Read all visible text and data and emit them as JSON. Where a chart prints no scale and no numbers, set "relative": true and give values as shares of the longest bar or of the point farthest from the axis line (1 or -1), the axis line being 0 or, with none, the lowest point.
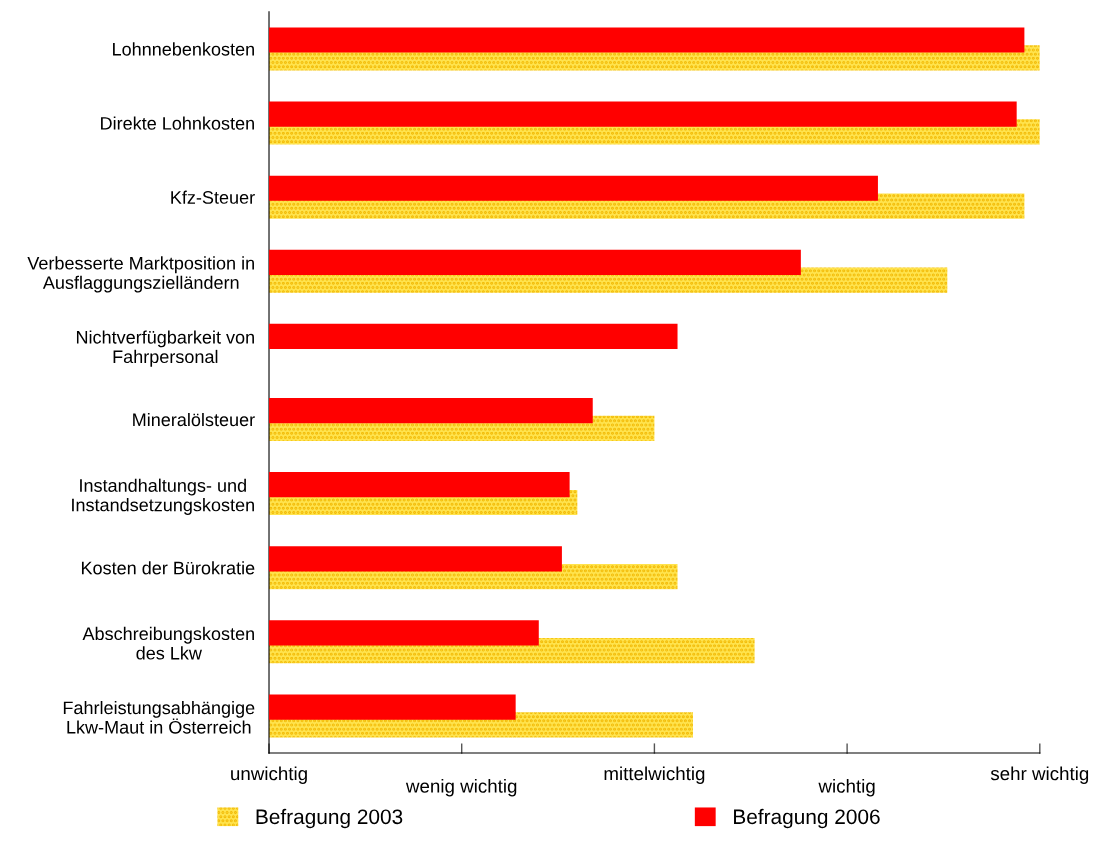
{
  "chart_data": {
    "type": "bar",
    "orientation": "horizontal",
    "relative": true,
    "categories": [
      "Lohnnebenkosten",
      "Direkte Lohnkosten",
      "Kfz-Steuer",
      "Verbesserte Marktposition in\nAusflaggungszielländern",
      "Nichtverfügbarkeit von\nFahrpersonal",
      "Mineralölsteuer",
      "Instandhaltungs- und\nInstandsetzungskosten",
      "Kosten der Bürokratie",
      "Abschreibungskosten\ndes Lkw",
      "Fahrleistungsabhängige\nLkw-Maut in Österreich"
    ],
    "series": [
      {
        "name": "Befragung 2003",
        "color": "#ffe34d",
        "values": [
          1.0,
          1.0,
          0.98,
          0.88,
          null,
          0.5,
          0.4,
          0.53,
          0.63,
          0.55
        ]
      },
      {
        "name": "Befragung 2006",
        "color": "#ff0000",
        "values": [
          0.98,
          0.97,
          0.79,
          0.69,
          0.53,
          0.42,
          0.39,
          0.38,
          0.35,
          0.32
        ]
      }
    ],
    "annotations": [
      "unwichtig",
      "wenig wichtig",
      "mittelwichtig",
      "wichtig",
      "sehr wichtig"
    ],
    "grid": false,
    "legend": "bottom"
  }
}
